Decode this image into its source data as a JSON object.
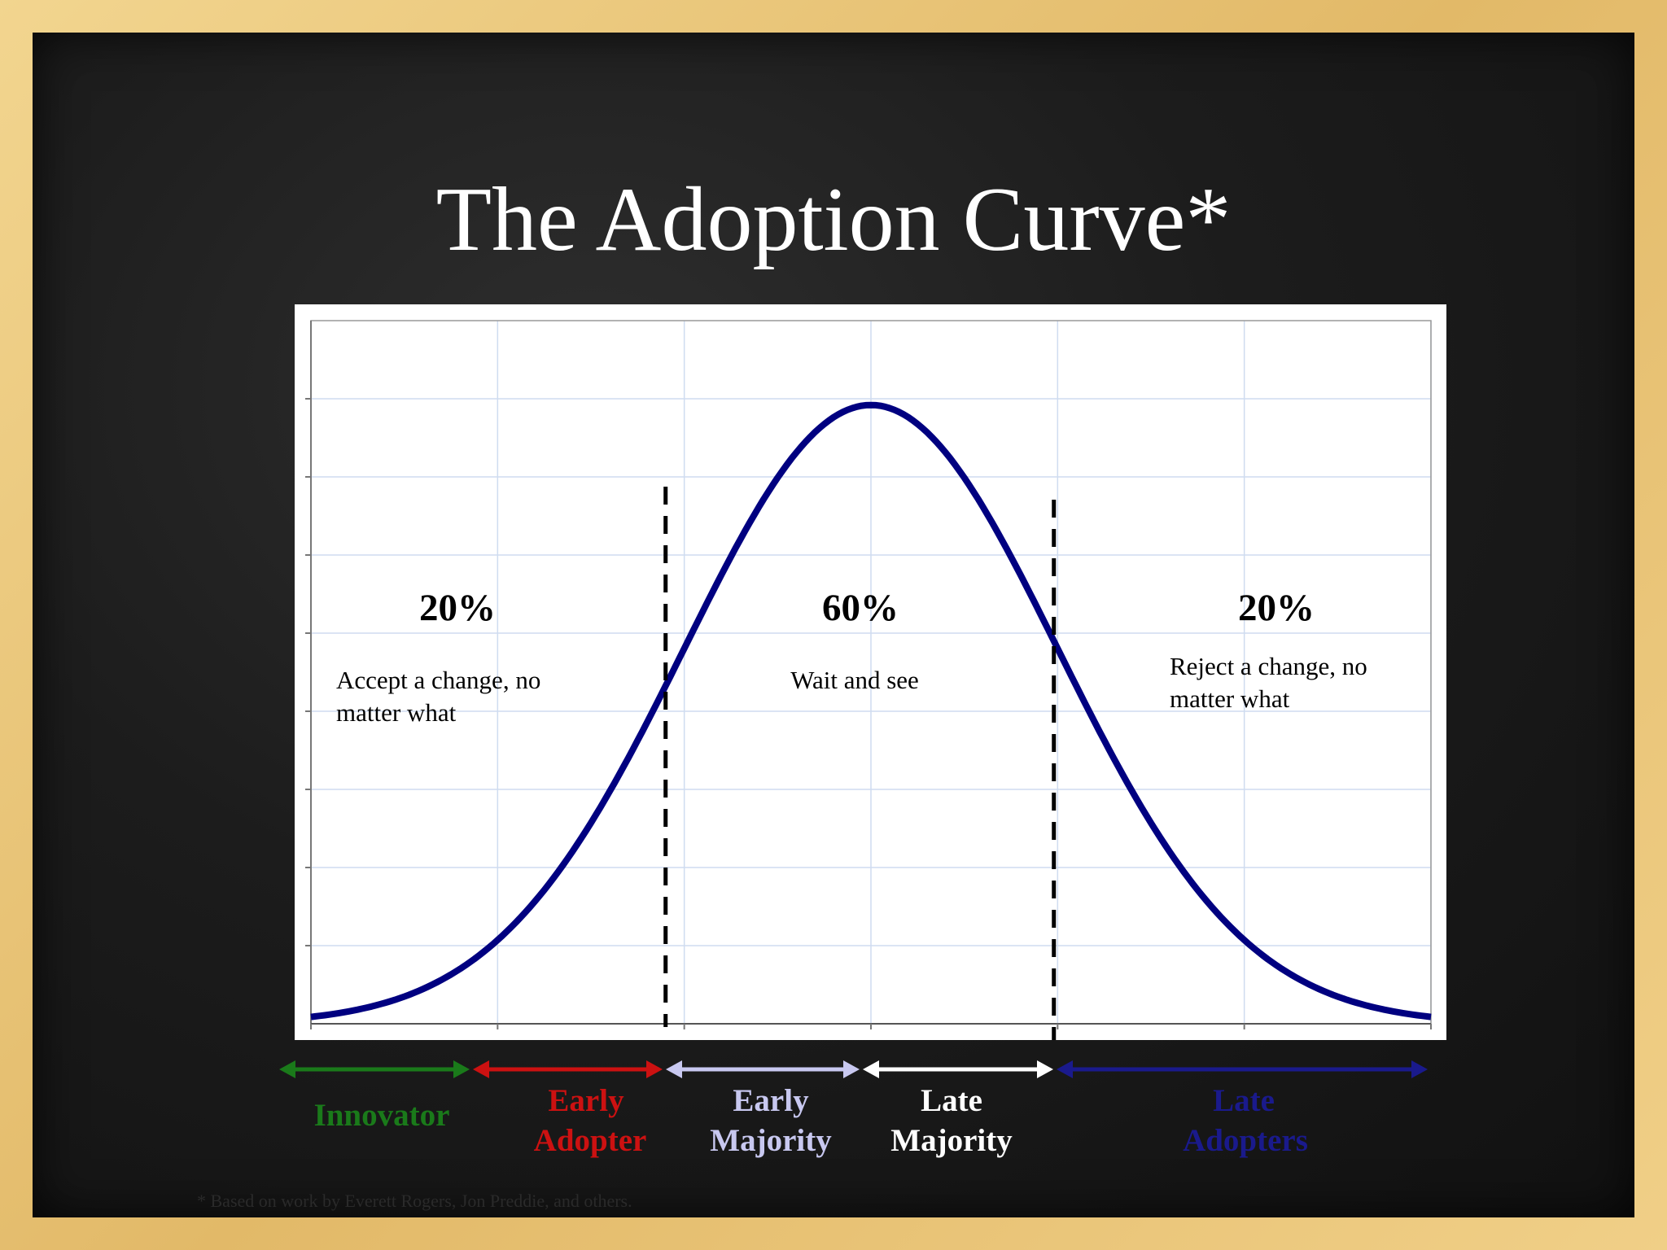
{
  "title": "The Adoption Curve*",
  "footnote": "* Based on work by Everett Rogers, Jon Preddie, and others.",
  "colors": {
    "curve": "#000080",
    "grid": "#cfdcf0",
    "innovator": "#1a7a1a",
    "early_adopter": "#cc1111",
    "early_majority": "#c8c8f0",
    "late_majority": "#ffffff",
    "late_adopters": "#1a1a8c"
  },
  "chart_data": {
    "type": "line",
    "curve": "normal distribution (bell curve)",
    "xlim": [
      -3,
      3
    ],
    "ylim": [
      0,
      1
    ],
    "grid": true,
    "dividers": [
      -1.1,
      0.98
    ],
    "groups": [
      {
        "percent": "20%",
        "text_line1": "Accept a change, no",
        "text_line2": "matter what"
      },
      {
        "percent": "60%",
        "text_line1": "Wait and see",
        "text_line2": ""
      },
      {
        "percent": "20%",
        "text_line1": "Reject a change, no",
        "text_line2": "matter what"
      }
    ]
  },
  "stages": [
    {
      "line1": "Innovator",
      "line2": ""
    },
    {
      "line1": "Early",
      "line2": "Adopter"
    },
    {
      "line1": "Early",
      "line2": "Majority"
    },
    {
      "line1": "Late",
      "line2": "Majority"
    },
    {
      "line1": "Late",
      "line2": "Adopters"
    }
  ]
}
